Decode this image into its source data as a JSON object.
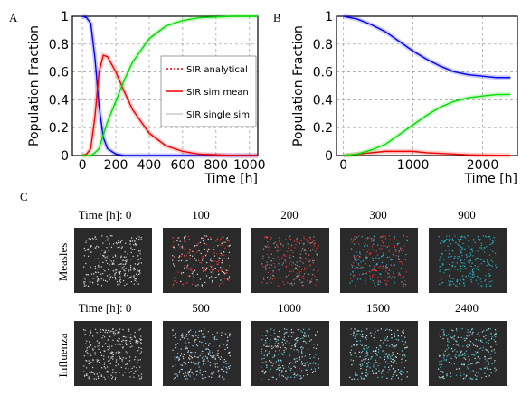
{
  "chart_data": [
    {
      "type": "line",
      "panel": "A",
      "xlabel": "Time [h]",
      "ylabel": "Population Fraction",
      "x": [
        0,
        25,
        50,
        75,
        100,
        125,
        150,
        200,
        250,
        300,
        400,
        500,
        600,
        700,
        800,
        900,
        1000,
        1050
      ],
      "series": [
        {
          "color": "#0000ee",
          "values": [
            1,
            0.99,
            0.95,
            0.7,
            0.35,
            0.13,
            0.05,
            0.01,
            0,
            0,
            0,
            0,
            0,
            0,
            0,
            0,
            0,
            0
          ]
        },
        {
          "color": "#ee0000",
          "values": [
            0,
            0.01,
            0.05,
            0.28,
            0.6,
            0.72,
            0.71,
            0.6,
            0.46,
            0.33,
            0.16,
            0.07,
            0.03,
            0.01,
            0.005,
            0,
            0,
            0
          ]
        },
        {
          "color": "#00dd00",
          "values": [
            0,
            0,
            0,
            0.02,
            0.05,
            0.15,
            0.24,
            0.39,
            0.54,
            0.67,
            0.84,
            0.93,
            0.97,
            0.99,
            0.995,
            1,
            1,
            1
          ]
        }
      ],
      "legend": [
        {
          "label": "SIR analytical",
          "color": "#ee0000",
          "dashed": true
        },
        {
          "label": "SIR sim mean",
          "color": "#ee0000",
          "dashed": false
        },
        {
          "label": "SIR single sim",
          "color": "#cccccc",
          "dashed": false
        }
      ],
      "xlim": [
        -60,
        1050
      ],
      "ylim": [
        0,
        1
      ],
      "xticks": [
        0,
        200,
        400,
        600,
        800,
        1000
      ],
      "yticks": [
        0,
        0.2,
        0.4,
        0.6,
        0.8,
        1
      ],
      "grid": true
    },
    {
      "type": "line",
      "panel": "B",
      "xlabel": "Time [h]",
      "ylabel": "Population Fraction",
      "x": [
        0,
        200,
        400,
        600,
        800,
        1000,
        1200,
        1400,
        1600,
        1800,
        2000,
        2200,
        2400
      ],
      "series": [
        {
          "color": "#0000ee",
          "values": [
            1,
            0.98,
            0.94,
            0.89,
            0.82,
            0.75,
            0.69,
            0.64,
            0.6,
            0.58,
            0.57,
            0.56,
            0.56
          ]
        },
        {
          "color": "#ee0000",
          "values": [
            0,
            0.01,
            0.02,
            0.03,
            0.03,
            0.03,
            0.02,
            0.015,
            0.01,
            0.005,
            0.003,
            0.002,
            0.001
          ]
        },
        {
          "color": "#00dd00",
          "values": [
            0,
            0.01,
            0.04,
            0.08,
            0.15,
            0.22,
            0.29,
            0.35,
            0.39,
            0.415,
            0.427,
            0.438,
            0.439
          ]
        }
      ],
      "xlim": [
        -100,
        2500
      ],
      "ylim": [
        0,
        1
      ],
      "xticks": [
        0,
        1000,
        2000
      ],
      "yticks": [
        0,
        0.2,
        0.4,
        0.6,
        0.8,
        1
      ],
      "grid": true
    }
  ],
  "panel_c": {
    "label": "C",
    "rows": [
      {
        "label": "Measles",
        "times": [
          "Time [h]: 0",
          "100",
          "200",
          "300",
          "900"
        ]
      },
      {
        "label": "Influenza",
        "times": [
          "Time [h]: 0",
          "500",
          "1000",
          "1500",
          "2400"
        ]
      }
    ]
  }
}
